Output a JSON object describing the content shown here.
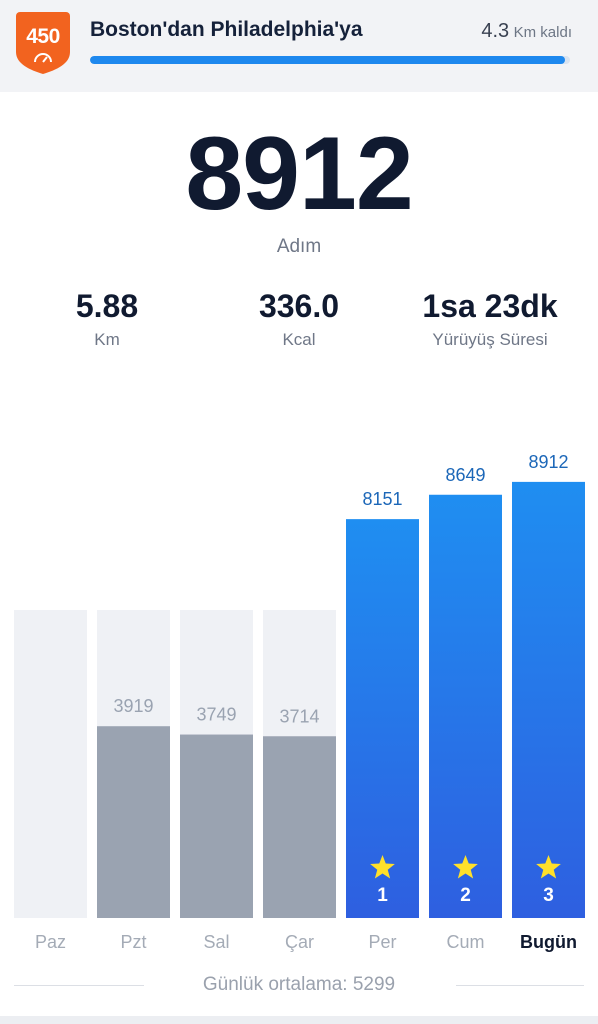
{
  "header": {
    "badge_number": "450",
    "route_title": "Boston'dan Philadelphia'ya",
    "remaining_value": "4.3",
    "remaining_unit": "Km kaldı",
    "route_progress": 0.99
  },
  "summary": {
    "steps": "8912",
    "steps_label": "Adım",
    "stats": [
      {
        "value": "5.88",
        "label": "Km"
      },
      {
        "value": "336.0",
        "label": "Kcal"
      },
      {
        "value": "1sa 23dk",
        "label": "Yürüyüş Süresi"
      }
    ]
  },
  "chart_data": {
    "type": "bar",
    "categories": [
      "Paz",
      "Pzt",
      "Sal",
      "Çar",
      "Per",
      "Cum",
      "Bugün"
    ],
    "values": [
      0,
      3919,
      3749,
      3714,
      8151,
      8649,
      8912
    ],
    "value_labels": [
      "",
      "3919",
      "3749",
      "3714",
      "8151",
      "8649",
      "8912"
    ],
    "goal": 6000,
    "ylim": [
      0,
      9400
    ],
    "star_labels": [
      "",
      "",
      "",
      "",
      "1",
      "2",
      "3"
    ],
    "highlight_category": "Bugün",
    "colors": {
      "goal_met_top": "#1f8ef1",
      "goal_met_bottom": "#2e5fe0",
      "below_goal": "#9aa3b1",
      "background_bar": "#eff1f5",
      "goal_met_label": "#1c67b8",
      "below_goal_label": "#9aa3b1",
      "star": "#ffe02a"
    }
  },
  "average": {
    "text": "Günlük ortalama: 5299"
  },
  "colors": {
    "badge": "#f2631f",
    "accent": "#1e88ee"
  }
}
